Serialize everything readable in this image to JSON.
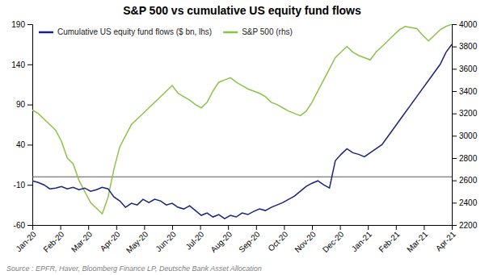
{
  "chart_data": {
    "type": "line",
    "title": "S&P 500 vs cumulative US equity fund flows",
    "x": [
      0,
      0.2083333333,
      0.4166666667,
      0.625,
      0.8333333333,
      1.0416666667,
      1.25,
      1.4583333333,
      1.6666666667,
      1.875,
      2.0833333333,
      2.2916666667,
      2.5,
      2.7083333333,
      2.9166666667,
      3.125,
      3.3333333333,
      3.5416666667,
      3.75,
      3.9583333333,
      4.1666666667,
      4.375,
      4.5833333333,
      4.7916666667,
      5,
      5.2083333333,
      5.4166666667,
      5.625,
      5.8333333333,
      6.0416666667,
      6.25,
      6.4583333333,
      6.6666666667,
      6.875,
      7.0833333333,
      7.2916666667,
      7.5,
      7.7083333333,
      7.9166666667,
      8.125,
      8.3333333333,
      8.5416666667,
      8.75,
      8.9583333333,
      9.1666666667,
      9.375,
      9.5833333333,
      9.7916666667,
      10,
      10.2083333333,
      10.4166666667,
      10.625,
      10.8333333333,
      11.0416666667,
      11.25,
      11.4583333333,
      11.6666666667,
      11.875,
      12.0833333333,
      12.2916666667,
      12.5,
      12.7083333333,
      12.9166666667,
      13.125,
      13.3333333333,
      13.5416666667,
      13.75,
      13.9583333333,
      14.1666666667,
      14.375,
      14.5833333333,
      14.7916666667,
      15
    ],
    "xlim": [
      0,
      15
    ],
    "xticks": [
      {
        "value": 0,
        "label": "Jan-20"
      },
      {
        "value": 1,
        "label": "Feb-20"
      },
      {
        "value": 2,
        "label": "Mar-20"
      },
      {
        "value": 3,
        "label": "Apr-20"
      },
      {
        "value": 4,
        "label": "May-20"
      },
      {
        "value": 5,
        "label": "Jun-20"
      },
      {
        "value": 6,
        "label": "Jul-20"
      },
      {
        "value": 7,
        "label": "Aug-20"
      },
      {
        "value": 8,
        "label": "Sep-20"
      },
      {
        "value": 9,
        "label": "Oct-20"
      },
      {
        "value": 10,
        "label": "Nov-20"
      },
      {
        "value": 11,
        "label": "Dec-20"
      },
      {
        "value": 12,
        "label": "Jan-21"
      },
      {
        "value": 13,
        "label": "Feb-21"
      },
      {
        "value": 14,
        "label": "Mar-21"
      },
      {
        "value": 15,
        "label": "Apr-21"
      }
    ],
    "ylim": [
      -60,
      190
    ],
    "yticks": [
      -60,
      -10,
      40,
      90,
      140,
      190
    ],
    "y2lim": [
      2200,
      4000
    ],
    "y2ticks": [
      2200,
      2400,
      2600,
      2800,
      3000,
      3200,
      3400,
      3600,
      3800,
      4000
    ],
    "series": [
      {
        "name": "Cumulative US equity fund flows ($ bn, lhs)",
        "color": "#1a237e",
        "values": [
          -5,
          -7,
          -10,
          -15,
          -14,
          -12,
          -15,
          -13,
          -16,
          -14,
          -18,
          -16,
          -13,
          -15,
          -25,
          -30,
          -38,
          -33,
          -35,
          -28,
          -32,
          -28,
          -30,
          -35,
          -33,
          -38,
          -40,
          -36,
          -42,
          -48,
          -45,
          -50,
          -47,
          -52,
          -48,
          -50,
          -45,
          -47,
          -43,
          -40,
          -42,
          -38,
          -35,
          -32,
          -28,
          -24,
          -18,
          -12,
          -8,
          -5,
          -10,
          -14,
          20,
          28,
          35,
          30,
          28,
          25,
          30,
          35,
          40,
          50,
          60,
          70,
          80,
          90,
          100,
          110,
          120,
          130,
          140,
          155,
          165
        ]
      },
      {
        "name": "S&P 500 (rhs)",
        "color": "#8bc34a",
        "axis": "y2",
        "values": [
          3230,
          3200,
          3150,
          3100,
          3050,
          2950,
          2800,
          2750,
          2600,
          2500,
          2400,
          2350,
          2300,
          2450,
          2700,
          2900,
          3000,
          3100,
          3150,
          3200,
          3250,
          3300,
          3350,
          3400,
          3450,
          3380,
          3350,
          3320,
          3280,
          3250,
          3300,
          3400,
          3480,
          3500,
          3520,
          3480,
          3450,
          3420,
          3400,
          3380,
          3350,
          3300,
          3280,
          3250,
          3220,
          3200,
          3180,
          3220,
          3300,
          3400,
          3500,
          3600,
          3700,
          3750,
          3800,
          3750,
          3720,
          3700,
          3680,
          3750,
          3800,
          3850,
          3900,
          3950,
          3980,
          3970,
          3960,
          3900,
          3850,
          3900,
          3950,
          3980,
          4000
        ]
      }
    ],
    "hline": {
      "y": 0,
      "color": "#555555"
    },
    "legend": "upper left",
    "grid": false,
    "source": "Source : EPFR, Haver, Bloomberg Finance LP, Deutsche Bank Asset Allocation"
  }
}
